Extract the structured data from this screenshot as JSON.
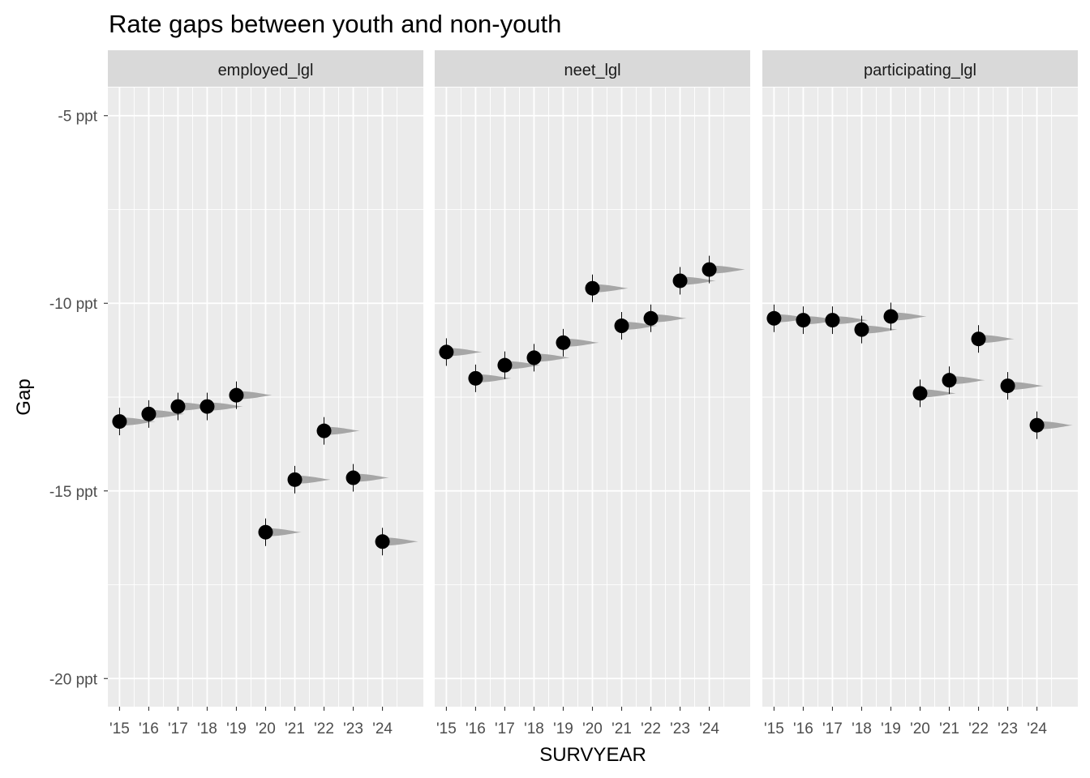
{
  "chart_data": {
    "type": "scatter",
    "title": "Rate gaps between youth and non-youth",
    "xlabel": "SURVYEAR",
    "ylabel": "Gap",
    "ylim": [
      -20.75,
      -4.25
    ],
    "y_ticks": [
      -5,
      -10,
      -15,
      -20
    ],
    "y_tick_labels": [
      "-5 ppt",
      "-10 ppt",
      "-15 ppt",
      "-20 ppt"
    ],
    "x_ticks": [
      2015,
      2016,
      2017,
      2018,
      2019,
      2020,
      2021,
      2022,
      2023,
      2024
    ],
    "x_tick_labels": [
      "'15",
      "'16",
      "'17",
      "'18",
      "'19",
      "'20",
      "'21",
      "'22",
      "'23",
      "'24"
    ],
    "xlim": [
      2014.6,
      2025.4
    ],
    "grid": true,
    "background": "#ebebeb",
    "strip_color": "#d9d9d9",
    "point_color": "#000000",
    "distribution_color": "#a6a6a6",
    "facets": [
      {
        "name": "employed_lgl",
        "values": [
          -13.15,
          -12.95,
          -12.75,
          -12.75,
          -12.45,
          -16.1,
          -14.7,
          -13.4,
          -14.65,
          -16.35
        ]
      },
      {
        "name": "neet_lgl",
        "values": [
          -11.3,
          -12.0,
          -11.65,
          -11.45,
          -11.05,
          -9.6,
          -10.6,
          -10.4,
          -9.4,
          -9.1
        ]
      },
      {
        "name": "participating_lgl",
        "values": [
          -10.4,
          -10.45,
          -10.45,
          -10.7,
          -10.35,
          -12.4,
          -12.05,
          -10.95,
          -12.2,
          -13.25
        ]
      }
    ]
  }
}
